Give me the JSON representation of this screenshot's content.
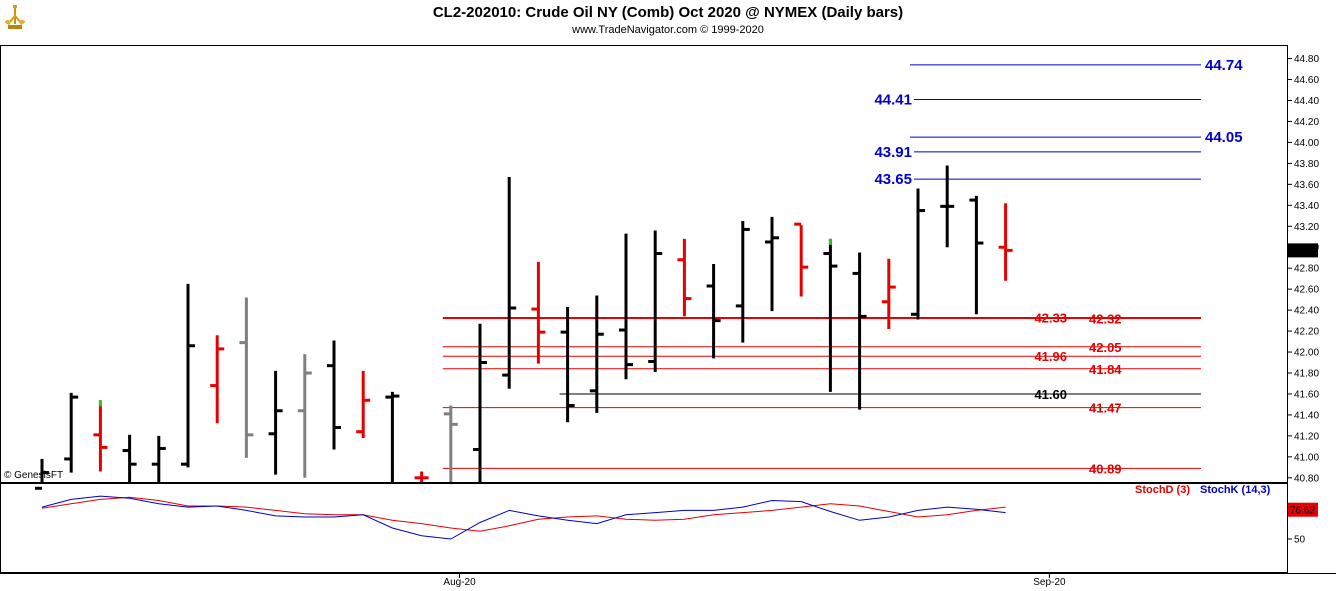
{
  "chart_data": {
    "type": "ohlc",
    "title": "CL2-202010:  Crude Oil NY (Comb) Oct 2020 @ NYMEX  (Daily bars)",
    "subtitle": "www.TradeNavigator.com © 1999-2020",
    "watermark": "© GenesisFT",
    "logo": "trading-logo-icon",
    "ylim": [
      40.76,
      44.92
    ],
    "y_ticks": [
      "44.80",
      "44.60",
      "44.40",
      "44.20",
      "44.00",
      "43.80",
      "43.60",
      "43.40",
      "43.20",
      "43.00",
      "42.80",
      "42.60",
      "42.40",
      "42.20",
      "42.00",
      "41.80",
      "41.60",
      "41.40",
      "41.20",
      "41.00",
      "40.80"
    ],
    "last_price": "42.97",
    "x_labels": [
      {
        "label": "Aug-20",
        "index": 14.3
      },
      {
        "label": "Sep-20",
        "index": 34.5
      }
    ],
    "colors": {
      "up": "#000000",
      "down": "#e60000",
      "inside": "#808080",
      "blue": "#0000cc",
      "red": "#e60000",
      "black": "#000000",
      "green": "#22cc22"
    },
    "bars": [
      {
        "o": 40.7,
        "h": 40.98,
        "l": 40.6,
        "c": 40.85,
        "color": "black"
      },
      {
        "o": 40.98,
        "h": 41.61,
        "l": 40.85,
        "c": 41.57,
        "color": "black"
      },
      {
        "o": 41.21,
        "h": 41.54,
        "l": 40.86,
        "c": 41.09,
        "color": "red",
        "green_tip": true
      },
      {
        "o": 41.06,
        "h": 41.21,
        "l": 40.76,
        "c": 40.93,
        "color": "black"
      },
      {
        "o": 40.93,
        "h": 41.2,
        "l": 40.76,
        "c": 41.08,
        "color": "black"
      },
      {
        "o": 40.93,
        "h": 42.65,
        "l": 40.9,
        "c": 42.06,
        "color": "black"
      },
      {
        "o": 41.68,
        "h": 42.16,
        "l": 41.32,
        "c": 42.03,
        "color": "red"
      },
      {
        "o": 42.09,
        "h": 42.52,
        "l": 40.99,
        "c": 41.21,
        "color": "gray"
      },
      {
        "o": 41.22,
        "h": 41.82,
        "l": 40.83,
        "c": 41.44,
        "color": "black"
      },
      {
        "o": 41.44,
        "h": 41.98,
        "l": 40.8,
        "c": 41.8,
        "color": "gray"
      },
      {
        "o": 41.87,
        "h": 42.11,
        "l": 41.07,
        "c": 41.28,
        "color": "black"
      },
      {
        "o": 41.24,
        "h": 41.82,
        "l": 41.18,
        "c": 41.54,
        "color": "red"
      },
      {
        "o": 41.57,
        "h": 41.62,
        "l": 40.76,
        "c": 41.58,
        "color": "black"
      },
      {
        "o": 40.8,
        "h": 40.86,
        "l": 40.76,
        "c": 40.8,
        "color": "red"
      },
      {
        "o": 41.41,
        "h": 41.49,
        "l": 40.76,
        "c": 41.31,
        "color": "gray"
      },
      {
        "o": 41.07,
        "h": 42.27,
        "l": 40.76,
        "c": 41.9,
        "color": "black"
      },
      {
        "o": 41.78,
        "h": 43.67,
        "l": 41.65,
        "c": 42.42,
        "color": "black"
      },
      {
        "o": 42.41,
        "h": 42.86,
        "l": 41.89,
        "c": 42.19,
        "color": "red"
      },
      {
        "o": 42.19,
        "h": 42.43,
        "l": 41.33,
        "c": 41.49,
        "color": "black"
      },
      {
        "o": 41.63,
        "h": 42.54,
        "l": 41.42,
        "c": 42.17,
        "color": "black"
      },
      {
        "o": 42.21,
        "h": 43.13,
        "l": 41.74,
        "c": 41.88,
        "color": "black"
      },
      {
        "o": 41.91,
        "h": 43.16,
        "l": 41.81,
        "c": 42.94,
        "color": "black"
      },
      {
        "o": 42.88,
        "h": 43.08,
        "l": 42.34,
        "c": 42.51,
        "color": "red"
      },
      {
        "o": 42.63,
        "h": 42.84,
        "l": 41.94,
        "c": 42.3,
        "color": "black"
      },
      {
        "o": 42.44,
        "h": 43.25,
        "l": 42.09,
        "c": 43.17,
        "color": "black"
      },
      {
        "o": 43.05,
        "h": 43.29,
        "l": 42.39,
        "c": 43.09,
        "color": "black"
      },
      {
        "o": 43.22,
        "h": 43.21,
        "l": 42.53,
        "c": 42.81,
        "color": "red"
      },
      {
        "o": 42.94,
        "h": 43.08,
        "l": 41.62,
        "c": 42.82,
        "color": "black",
        "green_tip": true
      },
      {
        "o": 42.75,
        "h": 42.95,
        "l": 41.45,
        "c": 42.34,
        "color": "black"
      },
      {
        "o": 42.48,
        "h": 42.89,
        "l": 42.22,
        "c": 42.62,
        "color": "red"
      },
      {
        "o": 42.36,
        "h": 43.56,
        "l": 42.31,
        "c": 43.35,
        "color": "black"
      },
      {
        "o": 43.39,
        "h": 43.78,
        "l": 43.0,
        "c": 43.39,
        "color": "black"
      },
      {
        "o": 43.45,
        "h": 43.49,
        "l": 42.36,
        "c": 43.04,
        "color": "black"
      },
      {
        "o": 43.0,
        "h": 43.42,
        "l": 42.68,
        "c": 42.97,
        "color": "red"
      }
    ],
    "levels": [
      {
        "value": 44.74,
        "label": "44.74",
        "color": "blue",
        "label_side": "right",
        "from": 30.0
      },
      {
        "value": 44.41,
        "label": "44.41",
        "color": "blue",
        "label_side": "left",
        "from": 30.0
      },
      {
        "value": 44.05,
        "label": "44.05",
        "color": "blue",
        "label_side": "right",
        "from": 30.0
      },
      {
        "value": 43.91,
        "label": "43.91",
        "color": "blue",
        "label_side": "left",
        "from": 30.0
      },
      {
        "value": 43.65,
        "label": "43.65",
        "color": "blue",
        "label_side": "left",
        "from": 30.0
      },
      {
        "value": 42.33,
        "label": "42.33",
        "color": "red",
        "label_side": "mid",
        "from": 14.0
      },
      {
        "value": 42.32,
        "label": "42.32",
        "color": "red",
        "label_side": "right",
        "from": 14.0
      },
      {
        "value": 42.05,
        "label": "42.05",
        "color": "red",
        "label_side": "right",
        "from": 14.0
      },
      {
        "value": 41.96,
        "label": "41.96",
        "color": "red",
        "label_side": "mid",
        "from": 14.0
      },
      {
        "value": 41.84,
        "label": "41.84",
        "color": "red",
        "label_side": "right",
        "from": 14.0
      },
      {
        "value": 41.6,
        "label": "41.60",
        "color": "black",
        "label_side": "mid",
        "from": 18.0
      },
      {
        "value": 41.47,
        "label": "41.47",
        "color": "red",
        "label_side": "right",
        "from": 14.0
      },
      {
        "value": 40.89,
        "label": "40.89",
        "color": "red",
        "label_side": "right",
        "from": 14.0
      }
    ],
    "stochastic": {
      "ylim": [
        20,
        100
      ],
      "tick_labels": [
        "50"
      ],
      "tick_values": [
        50
      ],
      "value_label": "76.62",
      "legend": [
        {
          "name": "StochD (3)",
          "color": "red"
        },
        {
          "name": "StochK (14,3)",
          "color": "blue"
        }
      ],
      "stochD": [
        78,
        82,
        86,
        88,
        85,
        80,
        80,
        79,
        76,
        73,
        72,
        72,
        67,
        64,
        60,
        57,
        62,
        68,
        70,
        71,
        68,
        67,
        68,
        72,
        74,
        76,
        79,
        82,
        80,
        75,
        70,
        72,
        76,
        79
      ],
      "stochK": [
        79,
        86,
        89,
        87,
        82,
        79,
        80,
        76,
        71,
        70,
        70,
        72,
        60,
        53,
        50,
        65,
        76,
        71,
        67,
        64,
        72,
        74,
        76,
        76,
        79,
        85,
        84,
        75,
        67,
        70,
        76,
        79,
        77,
        74
      ]
    }
  }
}
